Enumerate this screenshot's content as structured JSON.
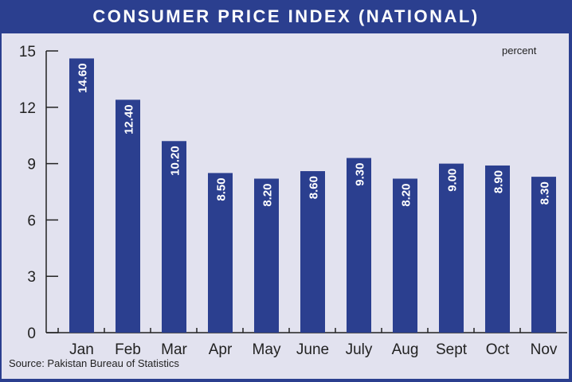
{
  "chart_data": {
    "type": "bar",
    "title": "CONSUMER PRICE INDEX (NATIONAL)",
    "unit_label": "percent",
    "source": "Source: Pakistan Bureau of Statistics",
    "categories": [
      "Jan",
      "Feb",
      "Mar",
      "Apr",
      "May",
      "June",
      "July",
      "Aug",
      "Sept",
      "Oct",
      "Nov"
    ],
    "values": [
      14.6,
      12.4,
      10.2,
      8.5,
      8.2,
      8.6,
      9.3,
      8.2,
      9.0,
      8.9,
      8.3
    ],
    "value_labels": [
      "14.60",
      "12.40",
      "10.20",
      "8.50",
      "8.20",
      "8.60",
      "9.30",
      "8.20",
      "9.00",
      "8.90",
      "8.30"
    ],
    "ylim": [
      0,
      15
    ],
    "yticks": [
      "0",
      "3",
      "6",
      "9",
      "12",
      "15"
    ],
    "xlabel": "",
    "ylabel": "",
    "grid": false,
    "bar_color": "#2b3f8f",
    "background_color": "#e2e2ef"
  }
}
